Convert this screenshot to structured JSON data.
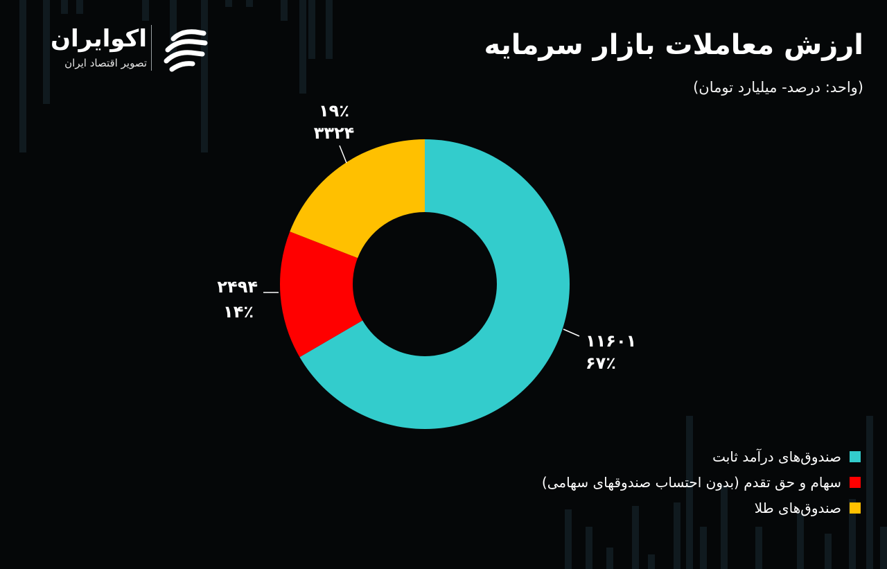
{
  "brand": {
    "name": "اکوایران",
    "tagline": "تصویر اقتصاد ایران"
  },
  "colors": {
    "background": "#050708",
    "teal": "#33CCCC",
    "red": "#FF0000",
    "yellow": "#FFC000"
  },
  "chart_data": {
    "type": "pie",
    "variant": "donut",
    "title": "ارزش معاملات بازار سرمایه",
    "subtitle": "(واحد: درصد- میلیارد تومان)",
    "legend_position": "bottom-right",
    "series": [
      {
        "name": "صندوق‌های درآمد ثابت",
        "value": 11601,
        "value_label": "۱۱۶۰۱",
        "percent_label": "۶۷٪",
        "color": "#33CCCC"
      },
      {
        "name": "سهام و حق تقدم (بدون احتساب صندوقهای سهامی)",
        "value": 2494,
        "value_label": "۲۴۹۴",
        "percent_label": "۱۴٪",
        "color": "#FF0000"
      },
      {
        "name": "صندوق‌های طلا",
        "value": 3324,
        "value_label": "۳۳۲۴",
        "percent_label": "۱۹٪",
        "color": "#FFC000"
      }
    ]
  }
}
